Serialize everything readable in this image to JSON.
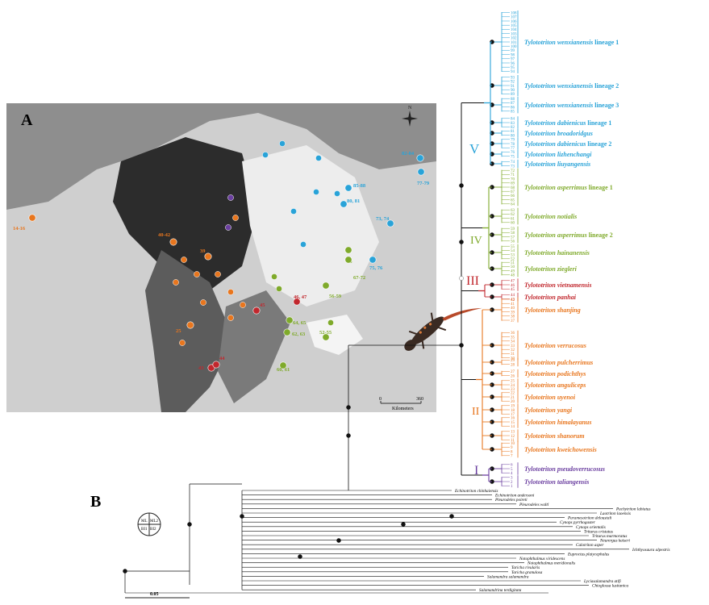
{
  "panels": {
    "a": "A",
    "b": "B"
  },
  "map": {
    "scale_zero": "0",
    "scale_max": "360",
    "scale_unit": "Kilometers",
    "north_label": "N",
    "points": [
      {
        "label": "14-16",
        "color": "#e8761e"
      },
      {
        "label": "40-42",
        "color": "#e8761e"
      },
      {
        "label": "39",
        "color": "#e8761e"
      },
      {
        "label": "25",
        "color": "#e8761e"
      },
      {
        "label": "45",
        "color": "#c1272d"
      },
      {
        "label": "46, 47",
        "color": "#c1272d"
      },
      {
        "label": "43",
        "color": "#c1272d"
      },
      {
        "label": "44",
        "color": "#c1272d"
      },
      {
        "label": "66",
        "color": "#7faa2b"
      },
      {
        "label": "67-72",
        "color": "#7faa2b"
      },
      {
        "label": "56-59",
        "color": "#7faa2b"
      },
      {
        "label": "64, 65",
        "color": "#7faa2b"
      },
      {
        "label": "62, 63",
        "color": "#7faa2b"
      },
      {
        "label": "52-55",
        "color": "#7faa2b"
      },
      {
        "label": "60, 61",
        "color": "#7faa2b"
      },
      {
        "label": "82-84",
        "color": "#29a3d8"
      },
      {
        "label": "77-79",
        "color": "#29a3d8"
      },
      {
        "label": "85-88",
        "color": "#29a3d8"
      },
      {
        "label": "80, 81",
        "color": "#29a3d8"
      },
      {
        "label": "73, 74",
        "color": "#29a3d8"
      },
      {
        "label": "75, 76",
        "color": "#29a3d8"
      }
    ]
  },
  "legend_node": {
    "ml": "ML",
    "ml2": "ML2",
    "bi": "BI1",
    "bi2": "BI2"
  },
  "scale_bar": "0.05",
  "clades": [
    {
      "numeral": "V",
      "color": "#29a3d8"
    },
    {
      "numeral": "IV",
      "color": "#7faa2b"
    },
    {
      "numeral": "III",
      "color": "#c1272d"
    },
    {
      "numeral": "II",
      "color": "#e8761e"
    },
    {
      "numeral": "I",
      "color": "#6b3fa0"
    }
  ],
  "taxa": [
    {
      "name": "Tylototriton wenxianensis",
      "suffix": " lineage  1",
      "color": "#29a3d8",
      "nums": "108 107 106 105 104 103 102 101 100 99 98 97 96 95 94"
    },
    {
      "name": "Tylototriton wenxianensis",
      "suffix": " lineage  2",
      "color": "#29a3d8",
      "nums": "93 92 91 90 89"
    },
    {
      "name": "Tylototriton wenxianensis",
      "suffix": " lineage  3",
      "color": "#29a3d8",
      "nums": "88 87 86 85"
    },
    {
      "name": "Tylototriton dabienicus",
      "suffix": " lineage 1",
      "color": "#29a3d8",
      "nums": "84 83 82"
    },
    {
      "name": "Tylototriton broadoridgus",
      "suffix": "",
      "color": "#29a3d8",
      "nums": "81 80"
    },
    {
      "name": "Tylototriton dabienicus",
      "suffix": " lineage 2",
      "color": "#29a3d8",
      "nums": "79 78 77"
    },
    {
      "name": "Tylototriton lizhenchangi",
      "suffix": "",
      "color": "#29a3d8",
      "nums": "76 75"
    },
    {
      "name": "Tylototriton liuyangensis",
      "suffix": "",
      "color": "#29a3d8",
      "nums": "74 73"
    },
    {
      "name": "Tylototriton asperrimus",
      "suffix": " lineage 1",
      "color": "#7faa2b",
      "nums": "72 71 70 69 68 67 66 65 64"
    },
    {
      "name": "Tylototriton notialis",
      "suffix": "",
      "color": "#7faa2b",
      "nums": "63 62 61 60"
    },
    {
      "name": "Tylototriton asperrimus",
      "suffix": " lineage 2",
      "color": "#7faa2b",
      "nums": "59 58 57 56"
    },
    {
      "name": "Tylototriton hainanensis",
      "suffix": "",
      "color": "#7faa2b",
      "nums": "55 54 53 52"
    },
    {
      "name": "Tylototriton ziegleri",
      "suffix": "",
      "color": "#7faa2b",
      "nums": "51 50 49 48"
    },
    {
      "name": "Tylototriton vietnamensis",
      "suffix": "",
      "color": "#c1272d",
      "nums": "47 46 45"
    },
    {
      "name": "Tylototriton panhai",
      "suffix": "",
      "color": "#c1272d",
      "nums": "44 43"
    },
    {
      "name": "Tylototriton shanjing",
      "suffix": "",
      "color": "#e8761e",
      "nums": "42 41 40 39 38 37"
    },
    {
      "name": "Tylototriton verrucosus",
      "suffix": "",
      "color": "#e8761e",
      "nums": "36 35 34 33 32 31 30"
    },
    {
      "name": "Tylototriton pulcherrimus",
      "suffix": "",
      "color": "#e8761e",
      "nums": "29 28"
    },
    {
      "name": "Tylototriton podichthys",
      "suffix": "",
      "color": "#e8761e",
      "nums": "27 26"
    },
    {
      "name": "Tylototriton anguliceps",
      "suffix": "",
      "color": "#e8761e",
      "nums": "25 24 23"
    },
    {
      "name": "Tylototriton uyenoi",
      "suffix": "",
      "color": "#e8761e",
      "nums": "22 21 20"
    },
    {
      "name": "Tylototriton yangi",
      "suffix": "",
      "color": "#e8761e",
      "nums": "19 18 17"
    },
    {
      "name": "Tylototriton himalayanus",
      "suffix": "",
      "color": "#e8761e",
      "nums": "16 15 14"
    },
    {
      "name": "Tylototriton shanorum",
      "suffix": "",
      "color": "#e8761e",
      "nums": "13 12 11"
    },
    {
      "name": "Tylototriton kweichowensis",
      "suffix": "",
      "color": "#e8761e",
      "nums": "10 9 8 7"
    },
    {
      "name": "Tylototriton pseudoverrucosus",
      "suffix": "",
      "color": "#6b3fa0",
      "nums": "6 5 4"
    },
    {
      "name": "Tylototriton taliangensis",
      "suffix": "",
      "color": "#6b3fa0",
      "nums": "3 2 1"
    }
  ],
  "outgroups": [
    "Echinotriton chinhaiensis",
    "Echinotriton andersoni",
    "Pleurodeles poireti",
    "Pleurodeles waltl",
    "Pachytriton labiatus",
    "Laotriton laoensis",
    "Paramesotriton deloustali",
    "Cynops pyrrhogaster",
    "Cynops orientalis",
    "Triturus cristatus",
    "Triturus marmoratus",
    "Neurergus kaiseri",
    "Calotriton asper",
    "Ichthyosaura alpestris",
    "Euproctus platycephalus",
    "Notophthalmus viridescens",
    "Notophthalmus meridionalis",
    "Taricha rivularis",
    "Taricha granulosa",
    "Salamandra salamandra",
    "Lyciasalamandra atifi",
    "Chioglossa lusitanica",
    "Salamandrina terdigitata"
  ]
}
